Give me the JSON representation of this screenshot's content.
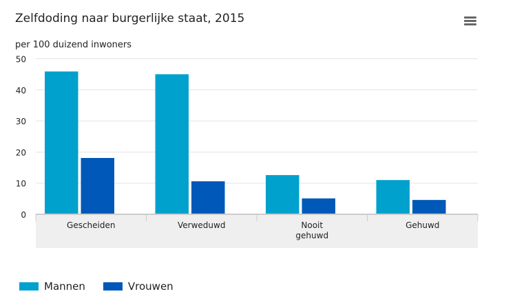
{
  "chart_data": {
    "type": "bar",
    "title": "Zelfdoding naar burgerlijke staat, 2015",
    "ylabel": "per 100 duizend inwoners",
    "categories": [
      "Gescheiden",
      "Verweduwd",
      "Nooit\ngehuwd",
      "Gehuwd"
    ],
    "series": [
      {
        "name": "Mannen",
        "color": "#00a1cd",
        "values": [
          45.9,
          45.0,
          12.6,
          11.0
        ]
      },
      {
        "name": "Vrouwen",
        "color": "#0058b8",
        "values": [
          18.1,
          10.6,
          5.1,
          4.6
        ]
      }
    ],
    "ylim": [
      0,
      50
    ],
    "yticks": [
      0,
      10,
      20,
      30,
      40,
      50
    ],
    "grid": true,
    "legend": "bottom-left"
  },
  "menu_icon": "hamburger-menu-icon"
}
